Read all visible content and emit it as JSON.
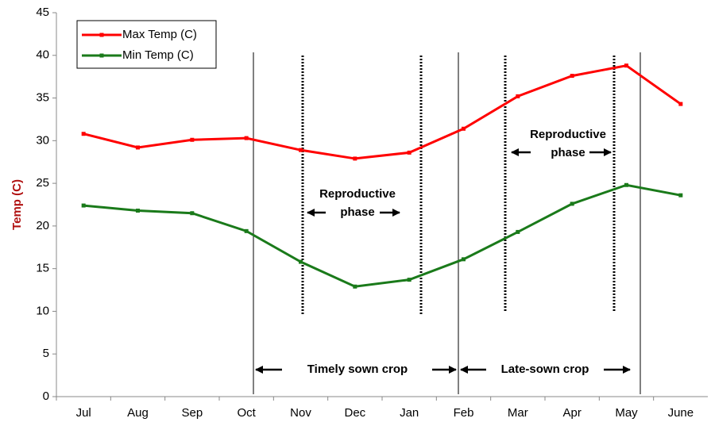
{
  "chart_data": {
    "type": "line",
    "ylabel": "Temp (C)",
    "categories": [
      "Jul",
      "Aug",
      "Sep",
      "Oct",
      "Nov",
      "Dec",
      "Jan",
      "Feb",
      "Mar",
      "Apr",
      "May",
      "June"
    ],
    "series": [
      {
        "name": "Max Temp (C)",
        "color": "#ff0000",
        "values": [
          30.8,
          29.2,
          30.1,
          30.3,
          28.9,
          27.9,
          28.6,
          31.4,
          35.2,
          37.6,
          38.8,
          34.3
        ]
      },
      {
        "name": "Min Temp (C)",
        "color": "#1a7a1a",
        "values": [
          22.4,
          21.8,
          21.5,
          19.4,
          15.8,
          12.9,
          13.7,
          16.1,
          19.3,
          22.6,
          24.8,
          23.6
        ]
      }
    ],
    "ylim": [
      0,
      45
    ],
    "yticks": [
      0,
      5,
      10,
      15,
      20,
      25,
      30,
      35,
      40,
      45
    ],
    "legend": "upper left",
    "annotations": [
      {
        "lines": [
          "Reproductive",
          "phase"
        ]
      },
      {
        "lines": [
          "Reproductive",
          "phase"
        ]
      },
      {
        "lines": [
          "Timely sown crop"
        ]
      },
      {
        "lines": [
          "Late-sown crop"
        ]
      }
    ]
  }
}
